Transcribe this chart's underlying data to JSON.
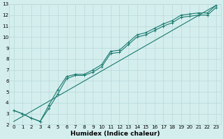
{
  "title": "",
  "xlabel": "Humidex (Indice chaleur)",
  "ylabel": "",
  "bg_color": "#d4eeee",
  "grid_color": "#b8d8d8",
  "line_color": "#1a7a6e",
  "xlim": [
    -0.5,
    23.5
  ],
  "ylim": [
    2,
    13
  ],
  "xticks": [
    0,
    1,
    2,
    3,
    4,
    5,
    6,
    7,
    8,
    9,
    10,
    11,
    12,
    13,
    14,
    15,
    16,
    17,
    18,
    19,
    20,
    21,
    22,
    23
  ],
  "yticks": [
    2,
    3,
    4,
    5,
    6,
    7,
    8,
    9,
    10,
    11,
    12,
    13
  ],
  "series1_x": [
    0,
    1,
    2,
    3,
    4,
    5,
    6,
    7,
    8,
    9,
    10,
    11,
    12,
    13,
    14,
    15,
    16,
    17,
    18,
    19,
    20,
    21,
    22,
    23
  ],
  "series1_y": [
    3.3,
    3.0,
    2.6,
    2.3,
    3.8,
    5.2,
    6.4,
    6.6,
    6.6,
    7.0,
    7.5,
    8.7,
    8.8,
    9.5,
    10.2,
    10.4,
    10.8,
    11.2,
    11.5,
    12.0,
    12.1,
    12.2,
    12.2,
    12.9
  ],
  "series2_x": [
    0,
    1,
    2,
    3,
    4,
    5,
    6,
    7,
    8,
    9,
    10,
    11,
    12,
    13,
    14,
    15,
    16,
    17,
    18,
    19,
    20,
    21,
    22,
    23
  ],
  "series2_y": [
    3.3,
    3.0,
    2.6,
    2.3,
    3.5,
    4.8,
    6.2,
    6.5,
    6.5,
    6.8,
    7.3,
    8.5,
    8.6,
    9.3,
    10.0,
    10.2,
    10.6,
    11.0,
    11.3,
    11.8,
    11.9,
    12.0,
    12.0,
    12.7
  ],
  "series3_x": [
    0,
    23
  ],
  "series3_y": [
    2.3,
    12.9
  ],
  "marker": "+",
  "markersize": 3,
  "linewidth": 0.8,
  "tick_fontsize": 5.2,
  "label_fontsize": 6.5
}
